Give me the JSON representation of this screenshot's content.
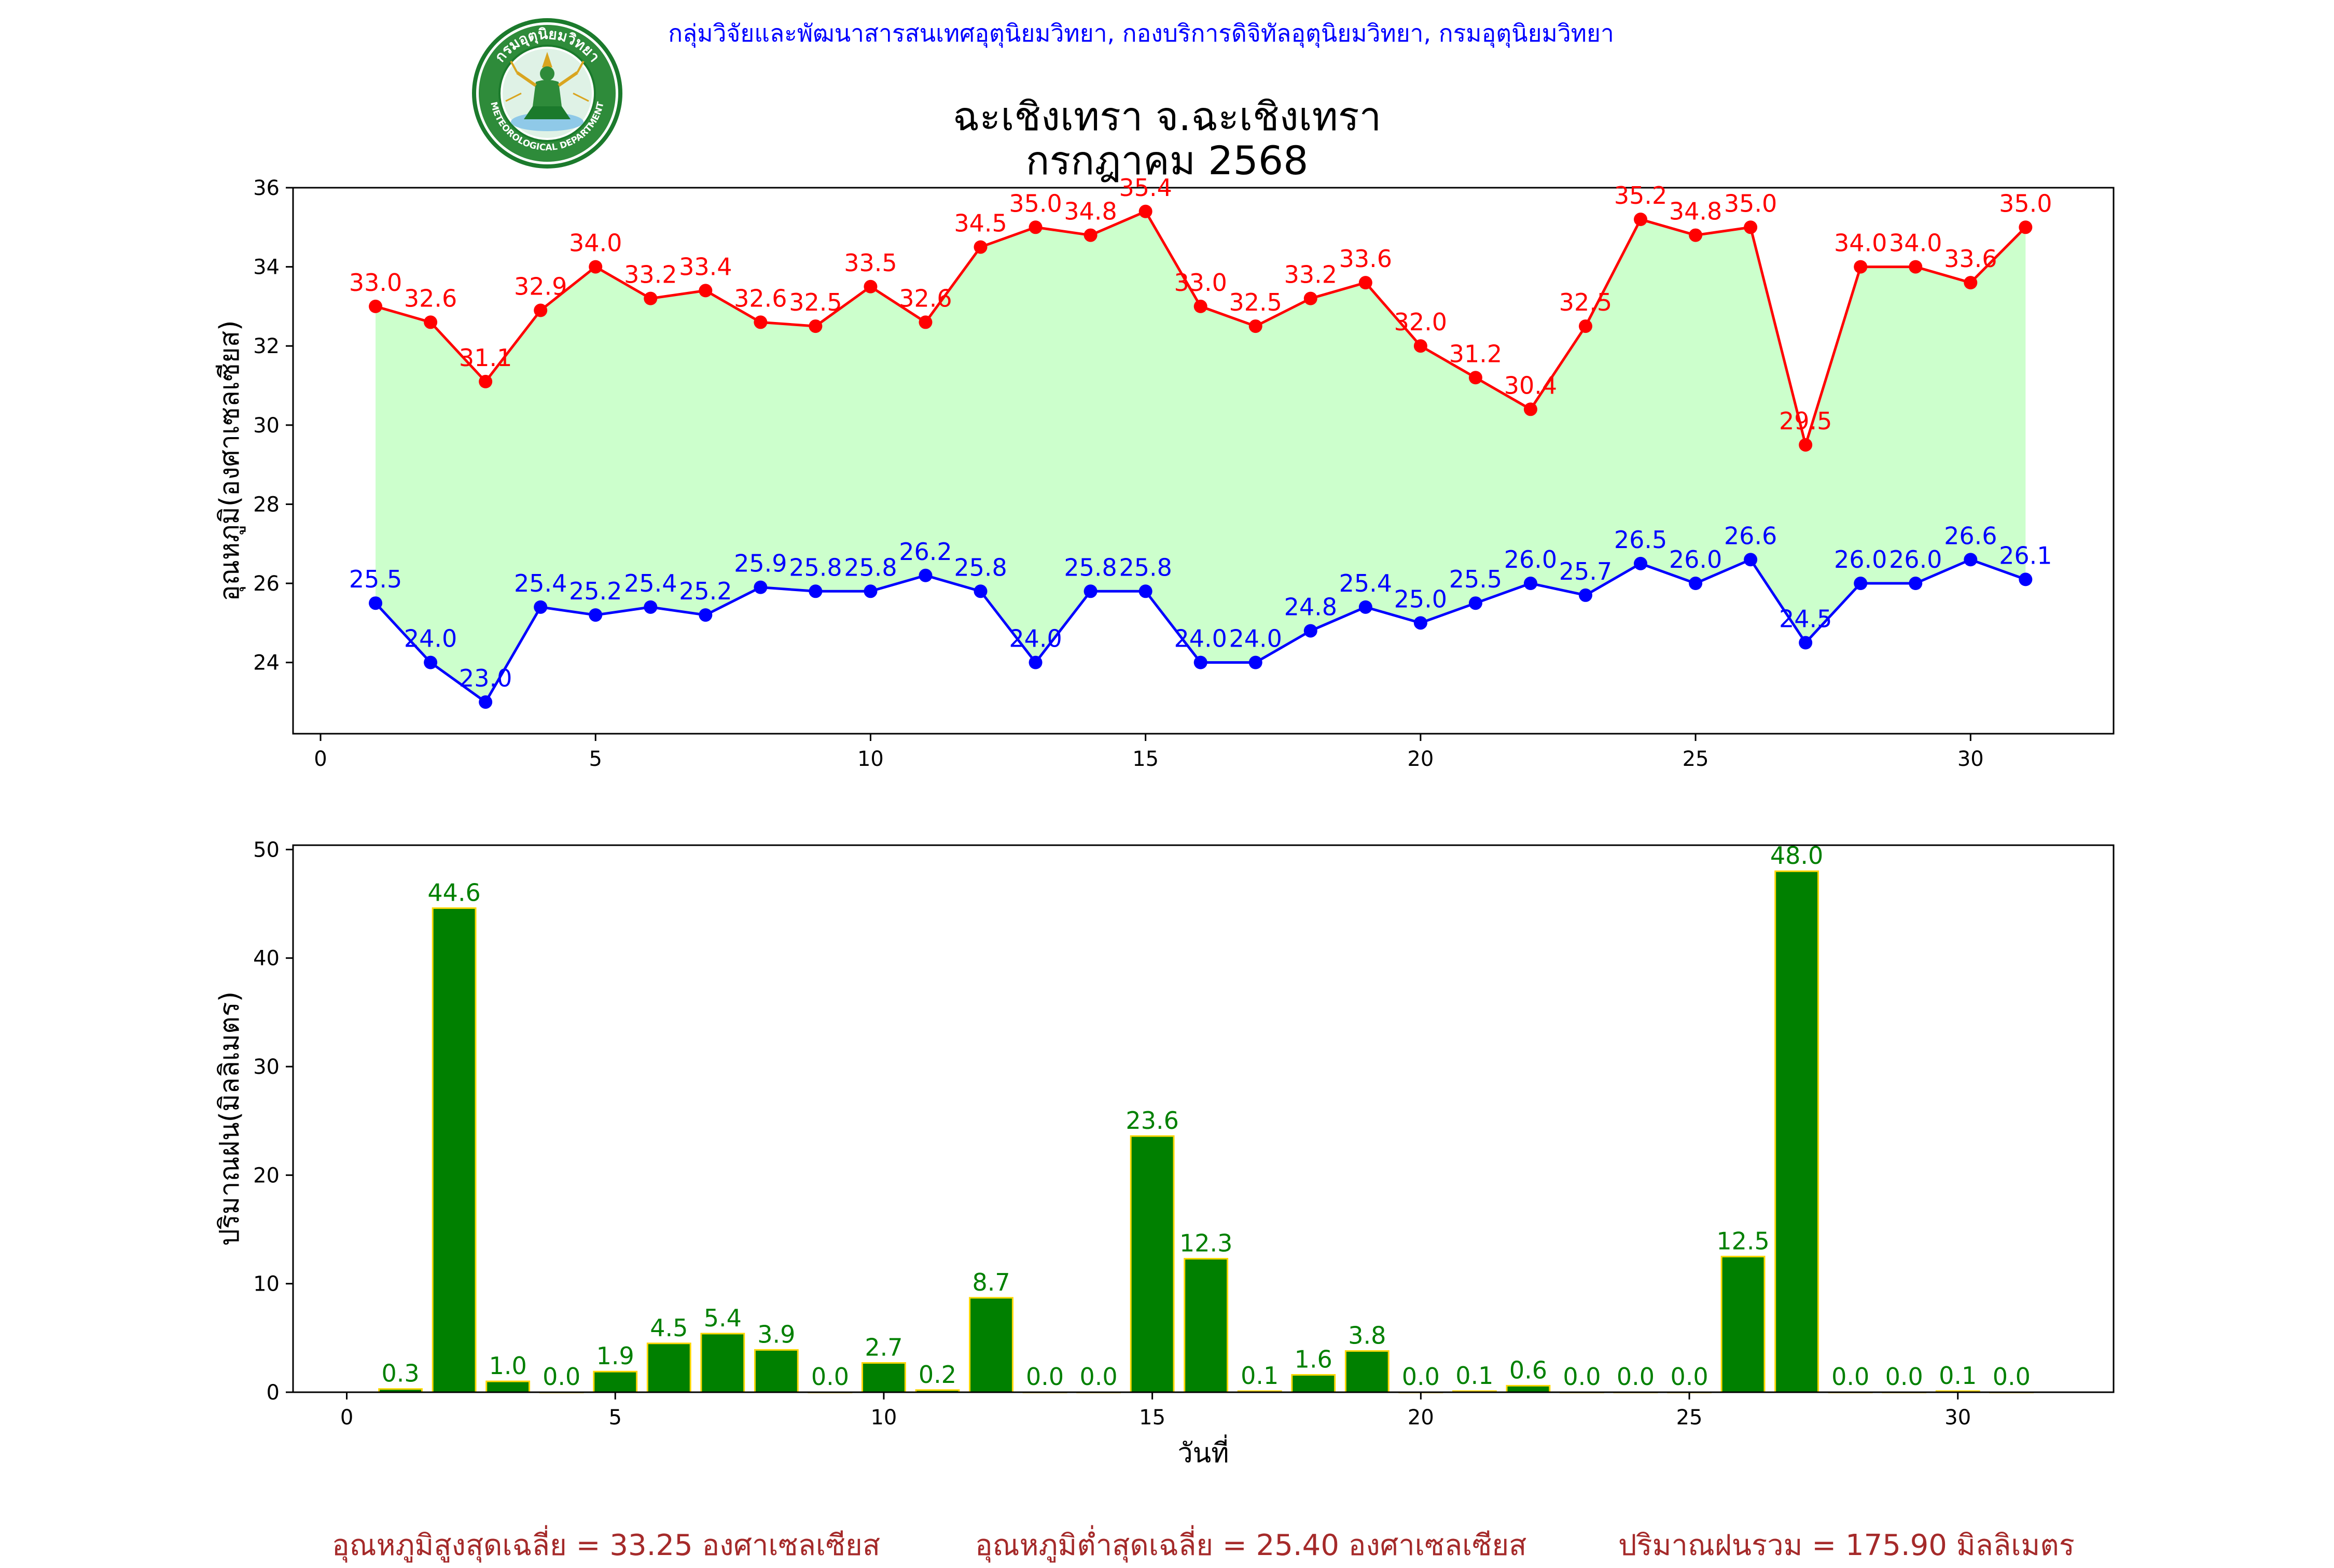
{
  "header": {
    "agency": "กลุ่มวิจัยและพัฒนาสารสนเทศอุตุนิยมวิทยา, กองบริการดิจิทัลอุตุนิยมวิทยา, กรมอุตุนิยมวิทยา",
    "title_line1": "ฉะเชิงเทรา จ.ฉะเชิงเทรา",
    "title_line2": "กรกฎาคม 2568",
    "logo_top_text": "กรมอุตุนิยมวิทยา",
    "logo_bottom_text": "METEOROLOGICAL DEPARTMENT"
  },
  "colors": {
    "max_line": "#ff0000",
    "min_line": "#0000ff",
    "fill": "#ccffcc",
    "bar_fill": "#008000",
    "bar_edge": "#ffd700",
    "rain_label": "#008000",
    "footer_text": "#a52a2a"
  },
  "chart_data": [
    {
      "type": "line",
      "title": "",
      "xlabel": "",
      "ylabel": "อุณหภูมิ(องศาเซลเซียส)",
      "xlim": [
        -0.5,
        32.6
      ],
      "ylim": [
        22.2,
        36
      ],
      "xticks": [
        0,
        5,
        10,
        15,
        20,
        25,
        30
      ],
      "yticks": [
        24,
        26,
        28,
        30,
        32,
        34,
        36
      ],
      "x": [
        1,
        2,
        3,
        4,
        5,
        6,
        7,
        8,
        9,
        10,
        11,
        12,
        13,
        14,
        15,
        16,
        17,
        18,
        19,
        20,
        21,
        22,
        23,
        24,
        25,
        26,
        27,
        28,
        29,
        30,
        31
      ],
      "series": [
        {
          "role": "max",
          "values": [
            33.0,
            32.6,
            31.1,
            32.9,
            34.0,
            33.2,
            33.4,
            32.6,
            32.5,
            33.5,
            32.6,
            34.5,
            35.0,
            34.8,
            35.4,
            33.0,
            32.5,
            33.2,
            33.6,
            32.0,
            31.2,
            30.4,
            32.5,
            35.2,
            34.8,
            35.0,
            29.5,
            34.0,
            34.0,
            33.6,
            35.0
          ]
        },
        {
          "role": "min",
          "values": [
            25.5,
            24.0,
            23.0,
            25.4,
            25.2,
            25.4,
            25.2,
            25.9,
            25.8,
            25.8,
            26.2,
            25.8,
            24.0,
            25.8,
            25.8,
            24.0,
            24.0,
            24.8,
            25.4,
            25.0,
            25.5,
            26.0,
            25.7,
            26.5,
            26.0,
            26.6,
            24.5,
            26.0,
            26.0,
            26.6,
            26.1
          ]
        }
      ],
      "grid": false,
      "fill_between": true
    },
    {
      "type": "bar",
      "title": "",
      "xlabel": "วันที่",
      "ylabel": "ปริมาณฝน(มิลลิเมตร)",
      "xlim": [
        -1,
        32.9
      ],
      "ylim": [
        0,
        50.4
      ],
      "xticks": [
        0,
        5,
        10,
        15,
        20,
        25,
        30
      ],
      "yticks": [
        0,
        10,
        20,
        30,
        40,
        50
      ],
      "x": [
        1,
        2,
        3,
        4,
        5,
        6,
        7,
        8,
        9,
        10,
        11,
        12,
        13,
        14,
        15,
        16,
        17,
        18,
        19,
        20,
        21,
        22,
        23,
        24,
        25,
        26,
        27,
        28,
        29,
        30,
        31
      ],
      "values": [
        0.3,
        44.6,
        1.0,
        0.0,
        1.9,
        4.5,
        5.4,
        3.9,
        0.0,
        2.7,
        0.2,
        8.7,
        0.0,
        0.0,
        23.6,
        12.3,
        0.1,
        1.6,
        3.8,
        0.0,
        0.1,
        0.6,
        0.0,
        0.0,
        0.0,
        12.5,
        48.0,
        0.0,
        0.0,
        0.1,
        0.0
      ],
      "grid": false
    }
  ],
  "footer": {
    "avg_max": "อุณหภูมิสูงสุดเฉลี่ย = 33.25 องศาเซลเซียส",
    "avg_min": "อุณหภูมิต่ำสุดเฉลี่ย = 25.40 องศาเซลเซียส",
    "total_rain": "ปริมาณฝนรวม = 175.90 มิลลิเมตร"
  }
}
